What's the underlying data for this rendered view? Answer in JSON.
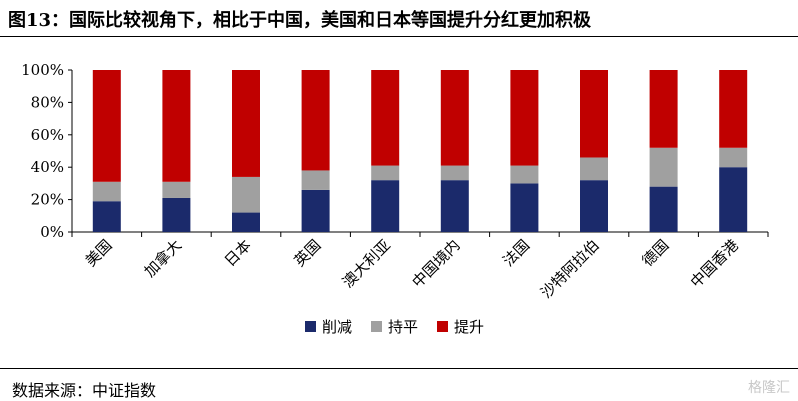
{
  "title": "图13：国际比较视角下，相比于中国，美国和日本等国提升分红更加积极",
  "source": "数据来源：中证指数",
  "watermark": "格隆汇",
  "colors": {
    "削减": "#1b2a6b",
    "持平": "#a0a0a0",
    "提升": "#c00000"
  },
  "chart_data": {
    "type": "bar",
    "stacked": true,
    "categories": [
      "美国",
      "加拿大",
      "日本",
      "英国",
      "澳大利亚",
      "中国境内",
      "法国",
      "沙特阿拉伯",
      "德国",
      "中国香港"
    ],
    "series": [
      {
        "name": "削减",
        "values": [
          19,
          21,
          12,
          26,
          32,
          32,
          30,
          32,
          28,
          40
        ]
      },
      {
        "name": "持平",
        "values": [
          12,
          10,
          22,
          12,
          9,
          9,
          11,
          14,
          24,
          12
        ]
      },
      {
        "name": "提升",
        "values": [
          69,
          69,
          66,
          62,
          59,
          59,
          59,
          54,
          48,
          48
        ]
      }
    ],
    "yticks": [
      "0%",
      "20%",
      "40%",
      "60%",
      "80%",
      "100%"
    ],
    "ylim": [
      0,
      100
    ],
    "legend": "bottom",
    "grid": false
  }
}
